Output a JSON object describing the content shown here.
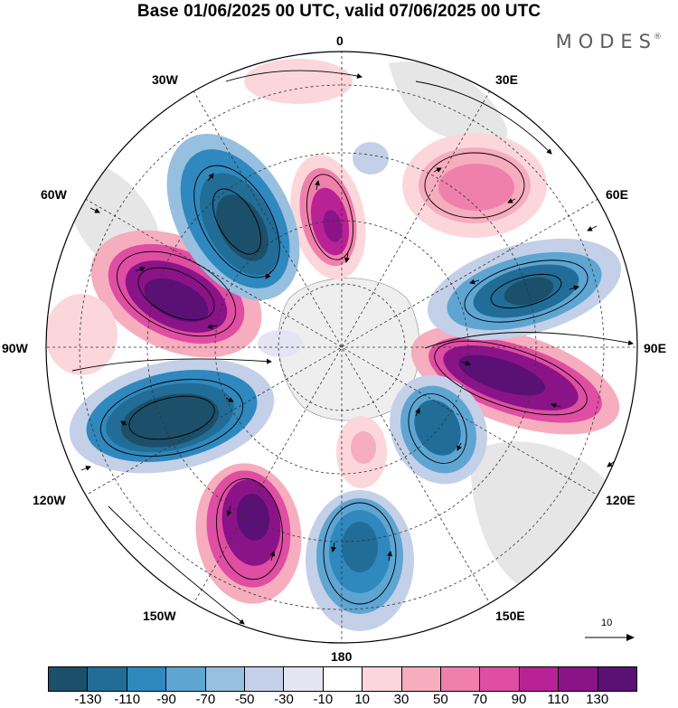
{
  "header": {
    "title": "Base 01/06/2025 00 UTC, valid 07/06/2025 00 UTC",
    "brand": "MODES",
    "brand_mark": "®"
  },
  "map": {
    "projection": "south-polar-stereographic",
    "longitude_labels": [
      "0",
      "30E",
      "60E",
      "90E",
      "120E",
      "150E",
      "180",
      "150W",
      "120W",
      "90W",
      "60W",
      "30W"
    ],
    "field": "anomaly",
    "overlay": "wind-vectors",
    "reference_vector": {
      "label": "10"
    }
  },
  "colorbar": {
    "colors": [
      "#1c4f6a",
      "#216d97",
      "#2f88be",
      "#5ea5d2",
      "#97bfe0",
      "#c3d0e8",
      "#e4e4f2",
      "#ffffff",
      "#fbd7dc",
      "#f6adbe",
      "#ef80ab",
      "#df4ea2",
      "#b82294",
      "#8b1388",
      "#5b1076"
    ],
    "tick_labels": [
      "-130",
      "-110",
      "-90",
      "-70",
      "-50",
      "-30",
      "-10",
      "10",
      "30",
      "50",
      "70",
      "90",
      "110",
      "130"
    ]
  }
}
